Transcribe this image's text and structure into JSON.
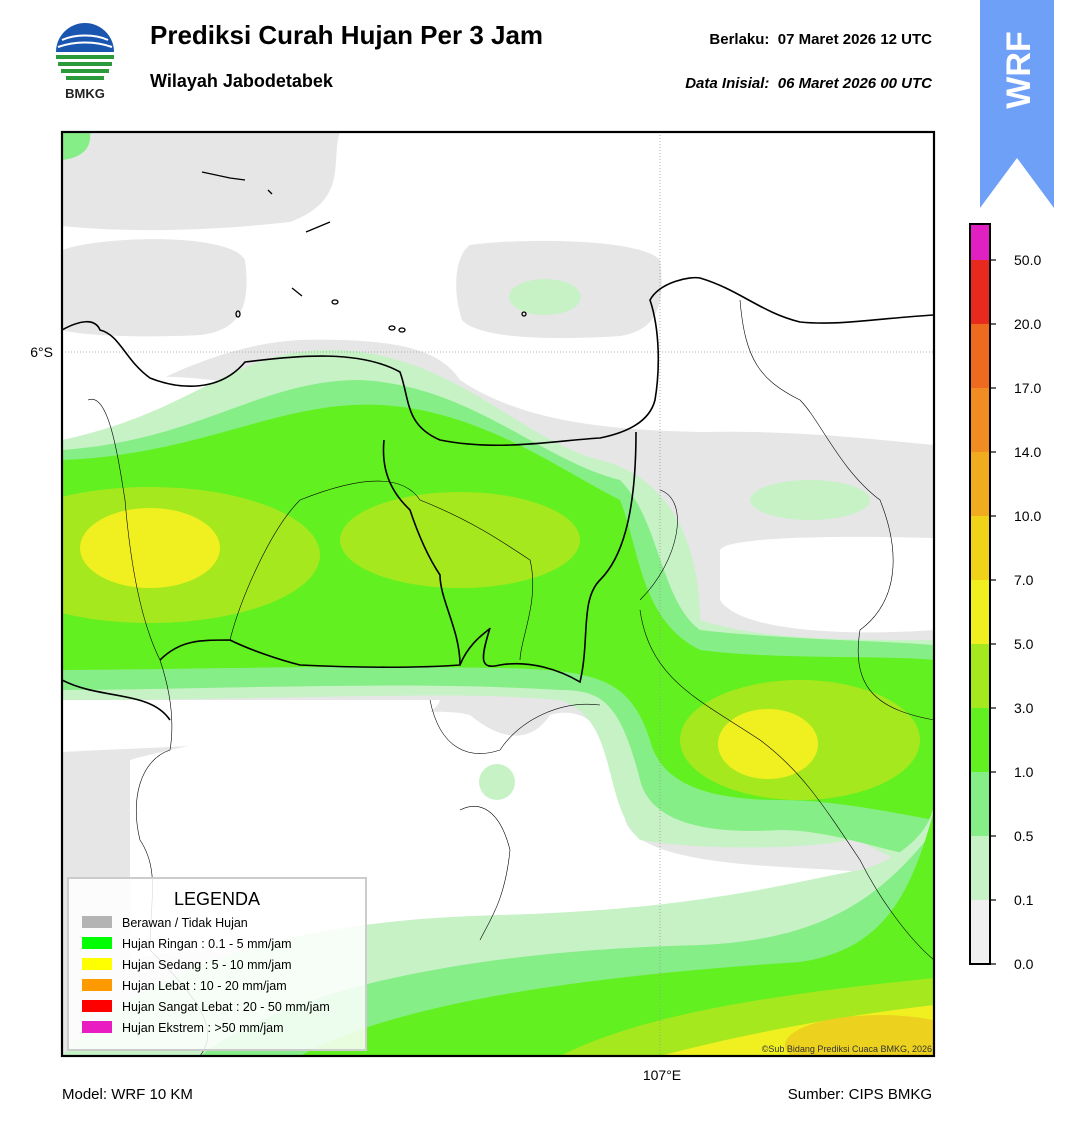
{
  "header": {
    "title": "Prediksi Curah Hujan Per 3 Jam",
    "subtitle": "Wilayah Jabodetabek",
    "valid": "Berlaku:  07 Maret 2026 12 UTC",
    "init": "Data Inisial:  06 Maret 2026 00 UTC",
    "logo_text": "BMKG",
    "badge": "WRF"
  },
  "map": {
    "lat_label": "6°S",
    "lon_label": "107°E",
    "credit": "©Sub Bidang Prediksi Cuaca BMKG, 2026"
  },
  "legend": {
    "title": "LEGENDA",
    "items": [
      {
        "label": "Berawan / Tidak Hujan",
        "color": "#b4b4b4"
      },
      {
        "label": "Hujan Ringan : 0.1 - 5 mm/jam",
        "color": "#00ff00"
      },
      {
        "label": "Hujan Sedang : 5 - 10 mm/jam",
        "color": "#ffff00"
      },
      {
        "label": "Hujan Lebat : 10 - 20 mm/jam",
        "color": "#ff9900"
      },
      {
        "label": "Hujan Sangat Lebat : 20 - 50 mm/jam",
        "color": "#ff0000"
      },
      {
        "label": "Hujan Ekstrem : >50 mm/jam",
        "color": "#e81cc0"
      }
    ]
  },
  "colorbar": {
    "labels": [
      "0.0",
      "0.1",
      "0.5",
      "1.0",
      "3.0",
      "5.0",
      "7.0",
      "10.0",
      "14.0",
      "17.0",
      "20.0",
      "50.0"
    ],
    "colors": [
      "#f0f0f0",
      "#c6f2c6",
      "#86ee86",
      "#62f020",
      "#a6e81e",
      "#f0f020",
      "#f0d218",
      "#f0ac1e",
      "#f08c22",
      "#ee6a1e",
      "#e82a1e",
      "#e020c0"
    ]
  },
  "footer": {
    "model": "Model: WRF 10 KM",
    "source": "Sumber: CIPS BMKG"
  }
}
